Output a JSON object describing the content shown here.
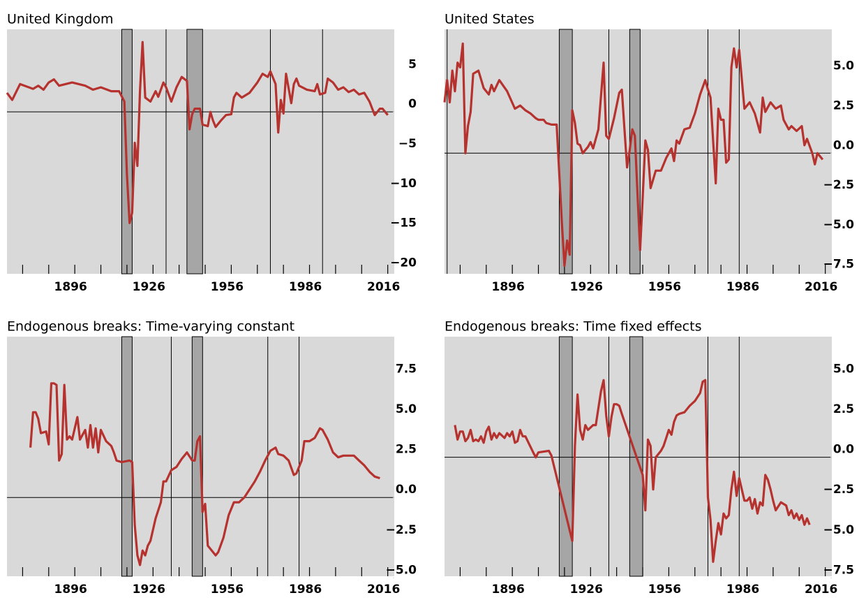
{
  "chart_data": [
    {
      "type": "line",
      "title": "United Kingdom",
      "color": "#b5322e",
      "x": [
        1870,
        1872,
        1875,
        1880,
        1882,
        1884,
        1886,
        1888,
        1890,
        1895,
        1900,
        1903,
        1906,
        1910,
        1913,
        1915,
        1916,
        1917,
        1918,
        1919,
        1920,
        1921,
        1922,
        1923,
        1925,
        1927,
        1928,
        1930,
        1931,
        1933,
        1935,
        1937,
        1939,
        1940,
        1941,
        1942,
        1944,
        1945,
        1947,
        1948,
        1949,
        1950,
        1952,
        1954,
        1956,
        1957,
        1958,
        1960,
        1963,
        1966,
        1968,
        1970,
        1971,
        1973,
        1974,
        1975,
        1976,
        1977,
        1979,
        1980,
        1981,
        1982,
        1985,
        1988,
        1989,
        1990,
        1992,
        1993,
        1995,
        1997,
        1999,
        2001,
        2003,
        2005,
        2007,
        2009,
        2011,
        2013,
        2014,
        2016
      ],
      "values": [
        2.4,
        1.5,
        3.5,
        2.9,
        3.3,
        2.8,
        3.7,
        4.1,
        3.3,
        3.7,
        3.3,
        2.8,
        3.1,
        2.6,
        2.6,
        1.3,
        -7.9,
        -14.0,
        -12.7,
        -3.9,
        -6.8,
        2.6,
        8.8,
        1.8,
        1.3,
        2.6,
        1.9,
        3.7,
        3.1,
        1.3,
        3.1,
        4.4,
        3.9,
        -2.2,
        -0.3,
        0.4,
        0.4,
        -1.6,
        -1.8,
        0,
        -1.1,
        -1.9,
        -1.1,
        -0.4,
        -0.3,
        1.8,
        2.4,
        1.8,
        2.4,
        3.7,
        4.8,
        4.4,
        5.1,
        3.5,
        -2.6,
        1.5,
        -0.2,
        4.8,
        1.1,
        3.5,
        4.2,
        3.3,
        2.8,
        2.6,
        3.5,
        2.2,
        2.4,
        4.2,
        3.7,
        2.8,
        3.1,
        2.5,
        2.8,
        2.2,
        2.4,
        1.3,
        -0.4,
        0.4,
        0.4,
        -0.4
      ],
      "xlim": [
        1870,
        2018.5
      ],
      "ylim": [
        -20.4,
        10.4
      ],
      "xticks": [
        1896,
        1926,
        1956,
        1986,
        2016
      ],
      "xminorticks": [
        1876,
        1886,
        1906,
        1916,
        1936,
        1946,
        1966,
        1976,
        1996,
        2006
      ],
      "yticks": [
        5,
        0,
        {
          "value": -5,
          "label": "−5"
        },
        {
          "value": -10,
          "label": "−10"
        },
        {
          "value": -15,
          "label": "−15"
        },
        {
          "value": -20,
          "label": "−20"
        }
      ],
      "shaded": [
        [
          1914,
          1918
        ],
        [
          1939,
          1945
        ]
      ],
      "vlines": [
        1931,
        1971,
        1991
      ],
      "zero_line": true
    },
    {
      "type": "line",
      "title": "United States",
      "color": "#b5322e",
      "x": [
        1870,
        1871,
        1872,
        1873,
        1874,
        1875,
        1876,
        1877,
        1878,
        1879,
        1880,
        1881,
        1883,
        1885,
        1887,
        1888,
        1889,
        1891,
        1894,
        1897,
        1899,
        1901,
        1903,
        1905,
        1906,
        1908,
        1909,
        1911,
        1913,
        1915,
        1916,
        1917,
        1918,
        1919,
        1920,
        1921,
        1922,
        1923,
        1925,
        1926,
        1927,
        1929,
        1931,
        1932,
        1933,
        1935,
        1937,
        1938,
        1939,
        1940,
        1941,
        1942,
        1943,
        1944,
        1945,
        1946,
        1947,
        1948,
        1949,
        1951,
        1953,
        1955,
        1957,
        1958,
        1959,
        1960,
        1962,
        1964,
        1966,
        1968,
        1970,
        1971,
        1972,
        1973,
        1974,
        1975,
        1976,
        1977,
        1978,
        1979,
        1980,
        1981,
        1982,
        1983,
        1985,
        1987,
        1989,
        1991,
        1992,
        1993,
        1995,
        1997,
        1999,
        2000,
        2002,
        2003,
        2005,
        2007,
        2008,
        2009,
        2011,
        2012,
        2013,
        2015
      ],
      "values": [
        3.2,
        4.6,
        3.2,
        5.2,
        3.9,
        5.7,
        5.4,
        6.9,
        0.0,
        1.7,
        2.6,
        5.0,
        5.2,
        4.1,
        3.7,
        4.3,
        3.9,
        4.6,
        3.9,
        2.8,
        3.0,
        2.7,
        2.5,
        2.2,
        2.1,
        2.1,
        1.9,
        1.8,
        1.8,
        -4.4,
        -7.1,
        -5.5,
        -6.4,
        2.7,
        1.9,
        0.6,
        0.5,
        0.0,
        0.4,
        0.7,
        0.3,
        1.5,
        5.7,
        1.1,
        0.9,
        2.2,
        3.8,
        4.0,
        1.5,
        -0.9,
        0.2,
        1.5,
        1.1,
        -2.6,
        -6.1,
        -2.8,
        0.8,
        0.2,
        -2.2,
        -1.1,
        -1.1,
        -0.3,
        0.3,
        -0.5,
        0.8,
        0.6,
        1.5,
        1.6,
        2.5,
        3.7,
        4.6,
        4.0,
        3.5,
        0.8,
        -1.9,
        2.8,
        2.1,
        2.1,
        -0.6,
        -0.4,
        5.4,
        6.6,
        5.4,
        6.5,
        2.8,
        3.2,
        2.5,
        1.3,
        3.5,
        2.6,
        3.2,
        2.8,
        3.0,
        2.1,
        1.5,
        1.7,
        1.4,
        1.7,
        0.5,
        0.9,
        0.0,
        -0.7,
        0.0,
        -0.4
      ],
      "xlim": [
        1870,
        2018.5
      ],
      "ylim": [
        -7.6,
        7.8
      ],
      "xticks": [
        1896,
        1926,
        1956,
        1986,
        2016
      ],
      "xminorticks": [
        1876,
        1886,
        1906,
        1916,
        1936,
        1946,
        1966,
        1976,
        1996,
        2006
      ],
      "yticks": [
        {
          "value": 5,
          "label": "5.0"
        },
        {
          "value": 2.5,
          "label": "2.5"
        },
        {
          "value": 0,
          "label": "0.0"
        },
        {
          "value": -2.5,
          "label": "−2.5"
        },
        {
          "value": -5,
          "label": "−5.0"
        },
        {
          "value": -7.5,
          "label": "−7.5"
        }
      ],
      "shaded": [
        [
          1914,
          1919
        ],
        [
          1941,
          1945
        ]
      ],
      "vlines": [
        1871,
        1933,
        1971,
        1983
      ],
      "zero_line": true
    },
    {
      "type": "line",
      "title": "Endogenous breaks: Time-varying constant",
      "color": "#b5322e",
      "x": [
        1879,
        1880,
        1881,
        1882,
        1883,
        1885,
        1886,
        1887,
        1888,
        1889,
        1890,
        1891,
        1892,
        1893,
        1894,
        1895,
        1897,
        1898,
        1900,
        1901,
        1902,
        1903,
        1904,
        1905,
        1906,
        1908,
        1910,
        1911,
        1912,
        1914,
        1917,
        1918,
        1919,
        1920,
        1921,
        1922,
        1923,
        1924,
        1925,
        1927,
        1929,
        1930,
        1931,
        1933,
        1935,
        1937,
        1939,
        1941,
        1942,
        1943,
        1944,
        1945,
        1946,
        1947,
        1949,
        1950,
        1951,
        1953,
        1955,
        1957,
        1959,
        1961,
        1963,
        1965,
        1967,
        1969,
        1971,
        1973,
        1974,
        1976,
        1978,
        1980,
        1981,
        1983,
        1984,
        1986,
        1988,
        1990,
        1991,
        1993,
        1995,
        1997,
        1999,
        2001,
        2003,
        2005,
        2007,
        2009,
        2011,
        2013
      ],
      "values": [
        3.1,
        5.3,
        5.3,
        4.9,
        4.0,
        4.1,
        3.3,
        7.1,
        7.1,
        7.0,
        2.3,
        2.7,
        7.0,
        3.6,
        3.8,
        3.6,
        5.0,
        3.6,
        4.2,
        3.1,
        4.5,
        3.1,
        4.3,
        2.8,
        4.2,
        3.5,
        3.2,
        2.8,
        2.3,
        2.2,
        2.3,
        2.2,
        -1.7,
        -3.6,
        -4.2,
        -3.3,
        -3.6,
        -3.0,
        -2.7,
        -1.3,
        -0.3,
        1.0,
        1.0,
        1.7,
        1.9,
        2.4,
        2.8,
        2.3,
        2.3,
        3.5,
        3.8,
        -0.9,
        -0.4,
        -3.0,
        -3.4,
        -3.6,
        -3.4,
        -2.5,
        -1.1,
        -0.3,
        -0.3,
        0,
        0.5,
        1.0,
        1.6,
        2.3,
        2.9,
        3.1,
        2.7,
        2.6,
        2.3,
        1.4,
        1.5,
        2.3,
        3.5,
        3.5,
        3.7,
        4.3,
        4.2,
        3.6,
        2.8,
        2.5,
        2.6,
        2.6,
        2.6,
        2.3,
        2.0,
        1.6,
        1.3,
        1.2
      ],
      "xlim": [
        1870,
        2018.5
      ],
      "ylim": [
        -4.9,
        10
      ],
      "xticks": [
        1896,
        1926,
        1956,
        1986,
        2016
      ],
      "xminorticks": [
        1876,
        1886,
        1906,
        1916,
        1936,
        1946,
        1966,
        1976,
        1996,
        2006
      ],
      "yticks": [
        {
          "value": 7.5,
          "label": "7.5"
        },
        {
          "value": 5,
          "label": "5.0"
        },
        {
          "value": 2.5,
          "label": "2.5"
        },
        {
          "value": 0,
          "label": "0.0"
        },
        {
          "value": -2.5,
          "label": "−2.5"
        },
        {
          "value": -5,
          "label": "−5.0"
        }
      ],
      "shaded": [
        [
          1914,
          1918
        ],
        [
          1941,
          1945
        ]
      ],
      "vlines": [
        1933,
        1970,
        1982
      ],
      "zero_line": true
    },
    {
      "type": "line",
      "title": "Endogenous breaks: Time fixed effects",
      "color": "#b5322e",
      "x": [
        1874,
        1875,
        1876,
        1877,
        1878,
        1879,
        1880,
        1881,
        1882,
        1883,
        1884,
        1885,
        1886,
        1887,
        1888,
        1889,
        1890,
        1891,
        1893,
        1894,
        1895,
        1896,
        1897,
        1898,
        1899,
        1900,
        1901,
        1904,
        1905,
        1906,
        1910,
        1911,
        1919,
        1920,
        1921,
        1922,
        1923,
        1924,
        1925,
        1927,
        1928,
        1930,
        1931,
        1932,
        1933,
        1934,
        1935,
        1936,
        1937,
        1938,
        1946,
        1947,
        1948,
        1949,
        1950,
        1951,
        1952,
        1953,
        1954,
        1955,
        1956,
        1957,
        1958,
        1959,
        1960,
        1962,
        1964,
        1966,
        1968,
        1969,
        1970,
        1971,
        1972,
        1973,
        1974,
        1975,
        1976,
        1977,
        1978,
        1979,
        1980,
        1981,
        1982,
        1983,
        1985,
        1986,
        1987,
        1988,
        1989,
        1990,
        1991,
        1992,
        1993,
        1994,
        1995,
        1996,
        1997,
        1999,
        2001,
        2002,
        2003,
        2004,
        2005,
        2006,
        2007,
        2008,
        2009,
        2010
      ],
      "values": [
        2.0,
        1.1,
        1.6,
        1.6,
        1.0,
        1.2,
        1.7,
        1.0,
        1.1,
        1.0,
        1.3,
        0.9,
        1.6,
        1.9,
        1.1,
        1.5,
        1.2,
        1.5,
        1.2,
        1.5,
        1.3,
        1.6,
        0.9,
        1.0,
        1.7,
        1.3,
        1.3,
        0.3,
        0.0,
        0.3,
        0.4,
        0.1,
        -5.2,
        0.7,
        3.9,
        1.7,
        1.1,
        2.0,
        1.7,
        2.0,
        2.0,
        4.1,
        4.8,
        2.6,
        1.3,
        2.5,
        3.3,
        3.3,
        3.2,
        2.7,
        -1.1,
        -3.3,
        1.1,
        0.7,
        -2.0,
        0.0,
        0.2,
        0.4,
        0.7,
        1.2,
        1.7,
        1.4,
        2.2,
        2.6,
        2.7,
        2.8,
        3.2,
        3.5,
        4.0,
        4.7,
        4.8,
        -2.5,
        -3.9,
        -6.5,
        -5.2,
        -4.1,
        -4.8,
        -3.5,
        -3.8,
        -3.6,
        -2.0,
        -0.9,
        -2.4,
        -1.3,
        -2.7,
        -2.7,
        -2.5,
        -3.2,
        -2.6,
        -3.5,
        -2.8,
        -3.0,
        -1.1,
        -1.4,
        -2.0,
        -2.7,
        -3.3,
        -2.8,
        -3.0,
        -3.6,
        -3.3,
        -3.8,
        -3.5,
        -3.9,
        -3.6,
        -4.2,
        -3.8,
        -4.2
      ],
      "xlim": [
        1870,
        2018.5
      ],
      "ylim": [
        -7.4,
        7.5
      ],
      "xticks": [
        1896,
        1926,
        1956,
        1986,
        2016
      ],
      "xminorticks": [
        1876,
        1886,
        1906,
        1916,
        1936,
        1946,
        1966,
        1976,
        1996,
        2006
      ],
      "yticks": [
        {
          "value": 5,
          "label": "5.0"
        },
        {
          "value": 2.5,
          "label": "2.5"
        },
        {
          "value": 0,
          "label": "0.0"
        },
        {
          "value": -2.5,
          "label": "−2.5"
        },
        {
          "value": -5,
          "label": "−5.0"
        },
        {
          "value": -7.5,
          "label": "−7.5"
        }
      ],
      "shaded": [
        [
          1914,
          1919
        ],
        [
          1941,
          1946
        ]
      ],
      "vlines": [
        1933,
        1971,
        1983
      ],
      "zero_line": true
    }
  ]
}
